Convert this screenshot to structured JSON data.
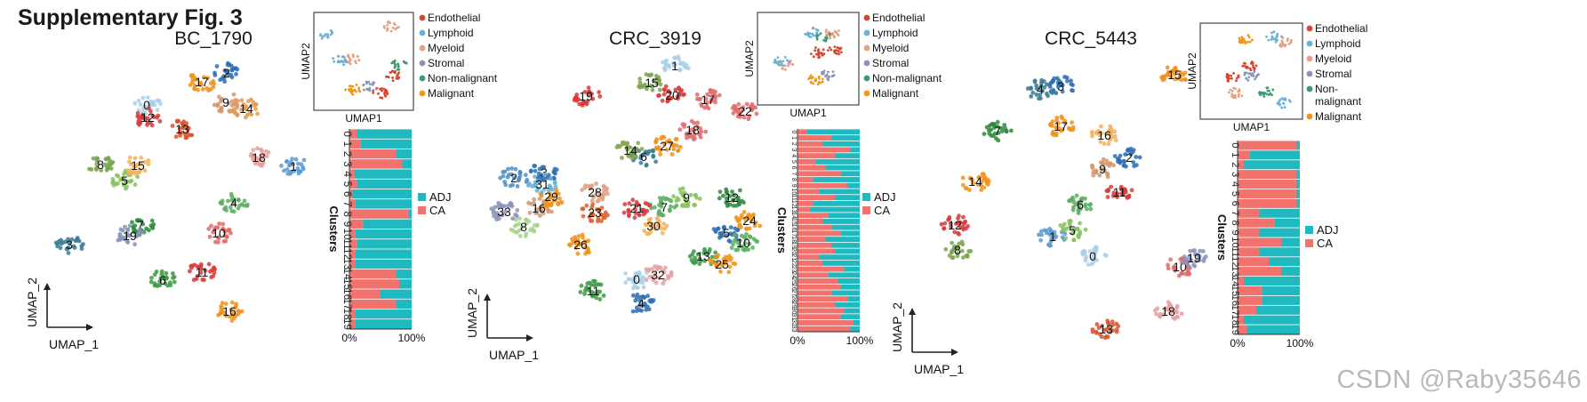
{
  "figure_title": "Supplementary Fig. 3",
  "watermark": "CSDN @Raby35646",
  "axes": {
    "x": "UMAP_1",
    "y": "UMAP_2",
    "inset_x": "UMAP1",
    "inset_y": "UMAP2"
  },
  "bar_axis": {
    "ylabel": "Clusters",
    "ticks": [
      "0%",
      "100%"
    ]
  },
  "colors": {
    "cell_types": {
      "Endothelial": "#d6452f",
      "Lymphoid": "#6ab1d6",
      "Myeloid": "#e3a082",
      "Stromal": "#8a93b8",
      "Non-malignant": "#3d9a6e",
      "Malignant": "#f29419"
    },
    "ADJ": "#21b9c0",
    "CA": "#f2736d"
  },
  "chart_data": [
    {
      "type": "scatter",
      "sample": "BC_1790",
      "cell_type_legend": [
        "Endothelial",
        "Lymphoid",
        "Myeloid",
        "Stromal",
        "Non-malignant",
        "Malignant"
      ],
      "clusters": [
        {
          "id": "0",
          "x": 165,
          "y": 118,
          "color": "#a9cfe8"
        },
        {
          "id": "1",
          "x": 330,
          "y": 187,
          "color": "#5b9bd0"
        },
        {
          "id": "2",
          "x": 255,
          "y": 82,
          "color": "#2f6fb1"
        },
        {
          "id": "3",
          "x": 78,
          "y": 275,
          "color": "#3a7a94"
        },
        {
          "id": "4",
          "x": 263,
          "y": 228,
          "color": "#5aae63"
        },
        {
          "id": "5",
          "x": 140,
          "y": 203,
          "color": "#86c35a"
        },
        {
          "id": "6",
          "x": 183,
          "y": 315,
          "color": "#3d9a45"
        },
        {
          "id": "7",
          "x": 158,
          "y": 253,
          "color": "#2c8a3c"
        },
        {
          "id": "8",
          "x": 113,
          "y": 185,
          "color": "#7aa552"
        },
        {
          "id": "9",
          "x": 254,
          "y": 115,
          "color": "#d39870"
        },
        {
          "id": "10",
          "x": 246,
          "y": 262,
          "color": "#e36a6a"
        },
        {
          "id": "11",
          "x": 227,
          "y": 306,
          "color": "#d93a3a"
        },
        {
          "id": "12",
          "x": 166,
          "y": 132,
          "color": "#d43c3c"
        },
        {
          "id": "13",
          "x": 205,
          "y": 145,
          "color": "#d8532f"
        },
        {
          "id": "14",
          "x": 277,
          "y": 122,
          "color": "#e29a55"
        },
        {
          "id": "15",
          "x": 155,
          "y": 186,
          "color": "#f3b15c"
        },
        {
          "id": "16",
          "x": 258,
          "y": 350,
          "color": "#f19019"
        },
        {
          "id": "17",
          "x": 227,
          "y": 92,
          "color": "#f19019"
        },
        {
          "id": "18",
          "x": 291,
          "y": 177,
          "color": "#e8a0a0"
        },
        {
          "id": "19",
          "x": 146,
          "y": 265,
          "color": "#8a93b8"
        }
      ]
    },
    {
      "type": "bar",
      "stacked": true,
      "sample": "BC_1790",
      "ylabel": "Clusters",
      "categories": [
        "0",
        "1",
        "2",
        "3",
        "4",
        "5",
        "6",
        "7",
        "8",
        "9",
        "10",
        "11",
        "12",
        "13",
        "14",
        "15",
        "16",
        "17",
        "18",
        "19"
      ],
      "series": [
        {
          "name": "CA",
          "values": [
            0.12,
            0.18,
            0.75,
            0.85,
            0.08,
            0.12,
            0.05,
            0.1,
            0.95,
            0.22,
            0.1,
            0.12,
            0.1,
            0.1,
            0.75,
            0.8,
            0.5,
            0.75,
            0.1,
            0.1
          ]
        },
        {
          "name": "ADJ",
          "values": [
            0.88,
            0.82,
            0.25,
            0.15,
            0.92,
            0.88,
            0.95,
            0.9,
            0.05,
            0.78,
            0.9,
            0.88,
            0.9,
            0.9,
            0.25,
            0.2,
            0.5,
            0.25,
            0.9,
            0.9
          ]
        }
      ],
      "xlim": [
        0,
        100
      ],
      "xticks": [
        "0%",
        "100%"
      ],
      "legend": [
        "ADJ",
        "CA"
      ]
    },
    {
      "type": "scatter",
      "sample": "CRC_3919",
      "cell_type_legend": [
        "Endothelial",
        "Lymphoid",
        "Myeloid",
        "Stromal",
        "Non-malignant",
        "Malignant"
      ],
      "clusters": [
        {
          "id": "0",
          "x": 716,
          "y": 314,
          "color": "#a9cfe8"
        },
        {
          "id": "1",
          "x": 759,
          "y": 74,
          "color": "#a9cfe8"
        },
        {
          "id": "2",
          "x": 578,
          "y": 200,
          "color": "#4f8fc6"
        },
        {
          "id": "3",
          "x": 612,
          "y": 194,
          "color": "#2f6fb1"
        },
        {
          "id": "4",
          "x": 721,
          "y": 341,
          "color": "#2f6fb1"
        },
        {
          "id": "5",
          "x": 817,
          "y": 262,
          "color": "#2f6fb1"
        },
        {
          "id": "6",
          "x": 724,
          "y": 176,
          "color": "#3a7a94"
        },
        {
          "id": "7",
          "x": 747,
          "y": 233,
          "color": "#5aae63"
        },
        {
          "id": "8",
          "x": 589,
          "y": 255,
          "color": "#a8d389"
        },
        {
          "id": "9",
          "x": 772,
          "y": 222,
          "color": "#86c35a"
        },
        {
          "id": "10",
          "x": 836,
          "y": 273,
          "color": "#5aae63"
        },
        {
          "id": "11",
          "x": 667,
          "y": 327,
          "color": "#3d9a45"
        },
        {
          "id": "12",
          "x": 823,
          "y": 222,
          "color": "#2c8a3c"
        },
        {
          "id": "13",
          "x": 791,
          "y": 288,
          "color": "#3d9a45"
        },
        {
          "id": "14",
          "x": 709,
          "y": 169,
          "color": "#86a552"
        },
        {
          "id": "15",
          "x": 733,
          "y": 93,
          "color": "#7aa552"
        },
        {
          "id": "16",
          "x": 606,
          "y": 234,
          "color": "#d39870"
        },
        {
          "id": "17",
          "x": 796,
          "y": 112,
          "color": "#e36a6a"
        },
        {
          "id": "18",
          "x": 779,
          "y": 146,
          "color": "#e36a6a"
        },
        {
          "id": "19",
          "x": 659,
          "y": 108,
          "color": "#d93a3a"
        },
        {
          "id": "20",
          "x": 756,
          "y": 107,
          "color": "#d43c3c"
        },
        {
          "id": "21",
          "x": 716,
          "y": 234,
          "color": "#d43c3c"
        },
        {
          "id": "22",
          "x": 838,
          "y": 125,
          "color": "#e36a6a"
        },
        {
          "id": "23",
          "x": 669,
          "y": 239,
          "color": "#d8602f"
        },
        {
          "id": "24",
          "x": 843,
          "y": 248,
          "color": "#f29419"
        },
        {
          "id": "25",
          "x": 812,
          "y": 297,
          "color": "#f29419"
        },
        {
          "id": "26",
          "x": 653,
          "y": 275,
          "color": "#f19019"
        },
        {
          "id": "27",
          "x": 750,
          "y": 164,
          "color": "#f19019"
        },
        {
          "id": "28",
          "x": 669,
          "y": 216,
          "color": "#e3a082"
        },
        {
          "id": "29",
          "x": 620,
          "y": 221,
          "color": "#f29419"
        },
        {
          "id": "30",
          "x": 735,
          "y": 254,
          "color": "#f3b15c"
        },
        {
          "id": "31",
          "x": 610,
          "y": 207,
          "color": "#6ab1d6"
        },
        {
          "id": "32",
          "x": 740,
          "y": 309,
          "color": "#e8a0a0"
        },
        {
          "id": "33",
          "x": 567,
          "y": 238,
          "color": "#8a93b8"
        }
      ]
    },
    {
      "type": "bar",
      "stacked": true,
      "sample": "CRC_3919",
      "ylabel": "Clusters",
      "categories": [
        "0",
        "1",
        "2",
        "3",
        "4",
        "5",
        "6",
        "7",
        "8",
        "9",
        "10",
        "11",
        "12",
        "13",
        "14",
        "15",
        "16",
        "17",
        "18",
        "19",
        "20",
        "21",
        "22",
        "23",
        "24",
        "25",
        "26",
        "27",
        "28",
        "29",
        "30",
        "31",
        "32",
        "33"
      ],
      "series": [
        {
          "name": "CA",
          "values": [
            0.15,
            0.55,
            0.4,
            0.85,
            0.6,
            0.3,
            0.45,
            0.7,
            0.25,
            0.8,
            0.35,
            0.6,
            0.25,
            0.2,
            0.5,
            0.4,
            0.55,
            0.7,
            0.45,
            0.55,
            0.6,
            0.35,
            0.4,
            0.75,
            0.5,
            0.65,
            0.7,
            0.55,
            0.8,
            0.6,
            0.75,
            0.7,
            0.9,
            0.85
          ]
        },
        {
          "name": "ADJ",
          "values": [
            0.85,
            0.45,
            0.6,
            0.15,
            0.4,
            0.7,
            0.55,
            0.3,
            0.75,
            0.2,
            0.65,
            0.4,
            0.75,
            0.8,
            0.5,
            0.6,
            0.45,
            0.3,
            0.55,
            0.45,
            0.4,
            0.65,
            0.6,
            0.25,
            0.5,
            0.35,
            0.3,
            0.45,
            0.2,
            0.4,
            0.25,
            0.3,
            0.1,
            0.15
          ]
        }
      ],
      "xlim": [
        0,
        100
      ],
      "xticks": [
        "0%",
        "100%"
      ],
      "legend": [
        "ADJ",
        "CA"
      ]
    },
    {
      "type": "scatter",
      "sample": "CRC_5443",
      "cell_type_legend": [
        "Endothelial",
        "Lymphoid",
        "Myeloid",
        "Stromal",
        "Non-\nmalignant",
        "Malignant"
      ],
      "clusters": [
        {
          "id": "0",
          "x": 1229,
          "y": 288,
          "color": "#a9cfe8"
        },
        {
          "id": "1",
          "x": 1184,
          "y": 266,
          "color": "#5b9bd0"
        },
        {
          "id": "2",
          "x": 1270,
          "y": 177,
          "color": "#2f6fb1"
        },
        {
          "id": "3",
          "x": 1193,
          "y": 97,
          "color": "#2f6fb1"
        },
        {
          "id": "4",
          "x": 1170,
          "y": 100,
          "color": "#3a7a94"
        },
        {
          "id": "5",
          "x": 1206,
          "y": 259,
          "color": "#86c35a"
        },
        {
          "id": "6",
          "x": 1215,
          "y": 230,
          "color": "#5aae63"
        },
        {
          "id": "7",
          "x": 1122,
          "y": 147,
          "color": "#2c8a3c"
        },
        {
          "id": "8",
          "x": 1077,
          "y": 281,
          "color": "#7aa552"
        },
        {
          "id": "9",
          "x": 1240,
          "y": 190,
          "color": "#d39870"
        },
        {
          "id": "10",
          "x": 1327,
          "y": 300,
          "color": "#e36a6a"
        },
        {
          "id": "11",
          "x": 1259,
          "y": 216,
          "color": "#d93a3a"
        },
        {
          "id": "12",
          "x": 1074,
          "y": 253,
          "color": "#d43c3c"
        },
        {
          "id": "13",
          "x": 1244,
          "y": 370,
          "color": "#d8532f"
        },
        {
          "id": "14",
          "x": 1097,
          "y": 204,
          "color": "#f29419"
        },
        {
          "id": "15",
          "x": 1321,
          "y": 84,
          "color": "#f19019"
        },
        {
          "id": "16",
          "x": 1242,
          "y": 152,
          "color": "#f3b15c"
        },
        {
          "id": "17",
          "x": 1193,
          "y": 142,
          "color": "#f19019"
        },
        {
          "id": "18",
          "x": 1314,
          "y": 350,
          "color": "#e8a0a0"
        },
        {
          "id": "19",
          "x": 1343,
          "y": 290,
          "color": "#8a93b8"
        }
      ]
    },
    {
      "type": "bar",
      "stacked": true,
      "sample": "CRC_5443",
      "ylabel": "Clusters",
      "categories": [
        "0",
        "1",
        "2",
        "3",
        "4",
        "5",
        "6",
        "7",
        "8",
        "9",
        "10",
        "11",
        "12",
        "13",
        "14",
        "15",
        "16",
        "17",
        "18",
        "19"
      ],
      "series": [
        {
          "name": "CA",
          "values": [
            0.95,
            0.2,
            0.1,
            0.95,
            0.95,
            0.95,
            0.95,
            0.35,
            0.6,
            0.35,
            0.7,
            0.35,
            0.5,
            0.7,
            0.1,
            0.4,
            0.4,
            0.3,
            0.1,
            0.15
          ]
        },
        {
          "name": "ADJ",
          "values": [
            0.05,
            0.8,
            0.9,
            0.05,
            0.05,
            0.05,
            0.05,
            0.65,
            0.4,
            0.65,
            0.3,
            0.65,
            0.5,
            0.3,
            0.9,
            0.6,
            0.6,
            0.7,
            0.9,
            0.85
          ]
        }
      ],
      "xlim": [
        0,
        100
      ],
      "xticks": [
        "0%",
        "100%"
      ],
      "legend": [
        "ADJ",
        "CA"
      ]
    }
  ]
}
